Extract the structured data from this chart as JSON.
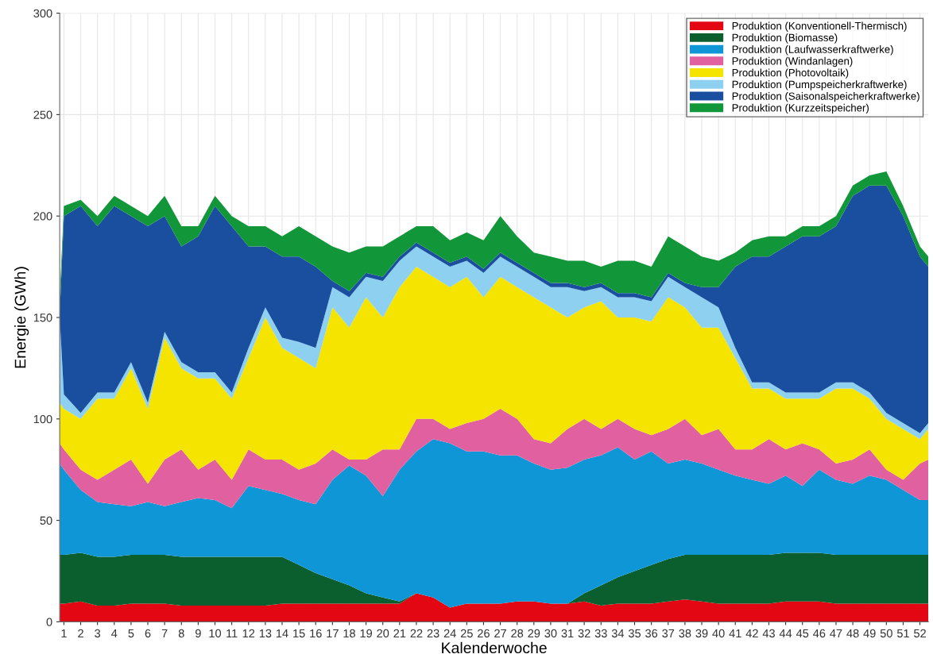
{
  "chart_data": {
    "type": "area",
    "stacked": true,
    "xlabel": "Kalenderwoche",
    "ylabel": "Energie (GWh)",
    "x": [
      0.75,
      1,
      2,
      3,
      4,
      5,
      6,
      7,
      8,
      9,
      10,
      11,
      12,
      13,
      14,
      15,
      16,
      17,
      18,
      19,
      20,
      21,
      22,
      23,
      24,
      25,
      26,
      27,
      28,
      29,
      30,
      31,
      32,
      33,
      34,
      35,
      36,
      37,
      38,
      39,
      40,
      41,
      42,
      43,
      44,
      45,
      46,
      47,
      48,
      49,
      50,
      51,
      52,
      52.5
    ],
    "xlim": [
      0.75,
      52.5
    ],
    "xticks": [
      1,
      2,
      3,
      4,
      5,
      6,
      7,
      8,
      9,
      10,
      11,
      12,
      13,
      14,
      15,
      16,
      17,
      18,
      19,
      20,
      21,
      22,
      23,
      24,
      25,
      26,
      27,
      28,
      29,
      30,
      31,
      32,
      33,
      34,
      35,
      36,
      37,
      38,
      39,
      40,
      41,
      42,
      43,
      44,
      45,
      46,
      47,
      48,
      49,
      50,
      51,
      52
    ],
    "ylim": [
      0,
      300
    ],
    "yticks": [
      0,
      50,
      100,
      150,
      200,
      250,
      300
    ],
    "grid": true,
    "legend": "top right",
    "series": [
      {
        "name": "Produktion (Konventionell-Thermisch)",
        "color": "#e30613",
        "values": [
          9,
          9,
          10,
          8,
          8,
          9,
          9,
          9,
          8,
          8,
          8,
          8,
          8,
          8,
          9,
          9,
          9,
          9,
          9,
          9,
          9,
          9,
          14,
          12,
          7,
          9,
          9,
          9,
          10,
          10,
          9,
          9,
          10,
          8,
          9,
          9,
          9,
          10,
          11,
          10,
          9,
          9,
          9,
          9,
          10,
          10,
          10,
          9,
          9,
          9,
          9,
          9,
          9,
          9
        ]
      },
      {
        "name": "Produktion (Biomasse)",
        "color": "#0b5e2e",
        "values": [
          24,
          24,
          24,
          24,
          24,
          24,
          24,
          24,
          24,
          24,
          24,
          24,
          24,
          24,
          23,
          19,
          15,
          12,
          9,
          5,
          3,
          1,
          0,
          0,
          0,
          0,
          0,
          0,
          0,
          0,
          0,
          0,
          4,
          10,
          13,
          16,
          19,
          21,
          22,
          23,
          24,
          24,
          24,
          24,
          24,
          24,
          24,
          24,
          24,
          24,
          24,
          24,
          24,
          24
        ]
      },
      {
        "name": "Produktion (Laufwasserkraftwerke)",
        "color": "#0f96d7",
        "values": [
          45,
          42,
          31,
          27,
          26,
          24,
          26,
          24,
          27,
          29,
          28,
          24,
          35,
          33,
          31,
          32,
          34,
          49,
          59,
          58,
          50,
          65,
          70,
          78,
          81,
          75,
          75,
          73,
          72,
          68,
          66,
          67,
          66,
          64,
          64,
          55,
          56,
          47,
          47,
          45,
          42,
          39,
          37,
          35,
          38,
          33,
          41,
          37,
          35,
          39,
          37,
          32,
          27,
          27
        ]
      },
      {
        "name": "Produktion (Windanlagen)",
        "color": "#e060a0",
        "values": [
          10,
          10,
          10,
          11,
          17,
          23,
          9,
          23,
          26,
          14,
          20,
          14,
          18,
          15,
          17,
          15,
          20,
          15,
          3,
          8,
          23,
          10,
          16,
          10,
          7,
          14,
          16,
          23,
          18,
          12,
          13,
          19,
          20,
          13,
          14,
          15,
          8,
          17,
          20,
          14,
          20,
          13,
          15,
          22,
          13,
          21,
          10,
          8,
          12,
          13,
          5,
          5,
          18,
          20
        ]
      },
      {
        "name": "Produktion (Photovoltaik)",
        "color": "#f5e400",
        "values": [
          20,
          20,
          25,
          40,
          35,
          45,
          37,
          60,
          40,
          45,
          40,
          40,
          45,
          70,
          55,
          55,
          47,
          70,
          65,
          80,
          65,
          80,
          75,
          70,
          70,
          72,
          60,
          65,
          65,
          70,
          67,
          55,
          55,
          63,
          50,
          55,
          56,
          65,
          55,
          53,
          50,
          45,
          30,
          25,
          25,
          22,
          25,
          37,
          35,
          25,
          25,
          25,
          12,
          15
        ]
      },
      {
        "name": "Produktion (Pumpspeicherkraftwerke)",
        "color": "#8dd0f0",
        "values": [
          42,
          7,
          3,
          3,
          3,
          3,
          3,
          3,
          3,
          3,
          3,
          3,
          5,
          5,
          5,
          8,
          10,
          10,
          15,
          10,
          18,
          13,
          10,
          10,
          10,
          8,
          12,
          10,
          10,
          10,
          10,
          15,
          8,
          7,
          10,
          10,
          10,
          10,
          10,
          15,
          10,
          5,
          3,
          3,
          3,
          3,
          3,
          3,
          3,
          3,
          3,
          3,
          3,
          3
        ]
      },
      {
        "name": "Produktion (Saisonalspeicherkraftwerke)",
        "color": "#1a4fa0",
        "values": [
          2,
          88,
          102,
          82,
          92,
          72,
          87,
          57,
          57,
          67,
          82,
          82,
          50,
          30,
          40,
          42,
          40,
          3,
          3,
          2,
          2,
          2,
          2,
          2,
          2,
          2,
          2,
          2,
          2,
          2,
          2,
          2,
          2,
          2,
          2,
          2,
          2,
          2,
          2,
          5,
          10,
          40,
          62,
          62,
          72,
          77,
          77,
          77,
          92,
          102,
          112,
          102,
          87,
          77
        ]
      },
      {
        "name": "Produktion (Kurzzeitspeicher)",
        "color": "#12963a",
        "values": [
          8,
          5,
          3,
          5,
          5,
          5,
          5,
          10,
          10,
          5,
          5,
          5,
          10,
          10,
          10,
          15,
          15,
          17,
          19,
          13,
          15,
          10,
          8,
          13,
          11,
          12,
          14,
          18,
          13,
          10,
          13,
          11,
          13,
          8,
          16,
          16,
          15,
          18,
          18,
          15,
          13,
          7,
          8,
          10,
          5,
          5,
          5,
          5,
          5,
          5,
          7,
          5,
          5,
          5
        ]
      }
    ]
  }
}
